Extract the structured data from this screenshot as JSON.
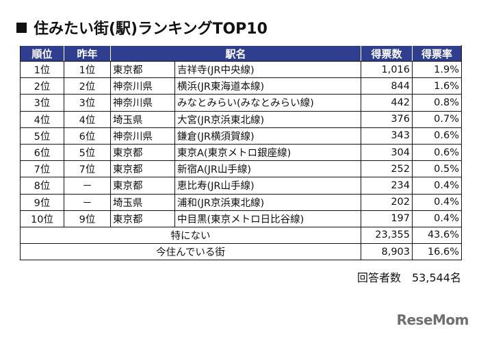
{
  "title": "住みたい街(駅)ランキングTOP10",
  "table": {
    "headers": [
      "順位",
      "昨年",
      "",
      "駅名",
      "得票数",
      "得票率"
    ],
    "rows": [
      {
        "rank": "1位",
        "last_year": "1位",
        "prefecture": "東京都",
        "station": "吉祥寺(JR中央線)",
        "votes": "1,016",
        "rate": "1.9%"
      },
      {
        "rank": "2位",
        "last_year": "2位",
        "prefecture": "神奈川県",
        "station": "横浜(JR東海道本線)",
        "votes": "844",
        "rate": "1.6%"
      },
      {
        "rank": "3位",
        "last_year": "3位",
        "prefecture": "神奈川県",
        "station": "みなとみらい(みなとみらい線)",
        "votes": "442",
        "rate": "0.8%"
      },
      {
        "rank": "4位",
        "last_year": "4位",
        "prefecture": "埼玉県",
        "station": "大宮(JR京浜東北線)",
        "votes": "376",
        "rate": "0.7%"
      },
      {
        "rank": "5位",
        "last_year": "6位",
        "prefecture": "神奈川県",
        "station": "鎌倉(JR横須賀線)",
        "votes": "343",
        "rate": "0.6%"
      },
      {
        "rank": "6位",
        "last_year": "5位",
        "prefecture": "東京都",
        "station": "東京A(東京メトロ銀座線)",
        "votes": "304",
        "rate": "0.6%"
      },
      {
        "rank": "7位",
        "last_year": "7位",
        "prefecture": "東京都",
        "station": "新宿A(JR山手線)",
        "votes": "252",
        "rate": "0.5%"
      },
      {
        "rank": "8位",
        "last_year": "－",
        "prefecture": "東京都",
        "station": "恵比寿(JR山手線)",
        "votes": "234",
        "rate": "0.4%"
      },
      {
        "rank": "9位",
        "last_year": "－",
        "prefecture": "埼玉県",
        "station": "浦和(JR京浜東北線)",
        "votes": "202",
        "rate": "0.4%"
      },
      {
        "rank": "10位",
        "last_year": "9位",
        "prefecture": "東京都",
        "station": "中目黒(東京メトロ日比谷線)",
        "votes": "197",
        "rate": "0.4%"
      }
    ],
    "summary": [
      {
        "label": "特にない",
        "votes": "23,355",
        "rate": "43.6%"
      },
      {
        "label": "今住んでいる街",
        "votes": "8,903",
        "rate": "16.6%"
      }
    ]
  },
  "respondents": "回答者数　53,544名",
  "logo": "ReseMom",
  "colors": {
    "header_bg": "#2f3e8f",
    "header_text": "#ffffff"
  }
}
